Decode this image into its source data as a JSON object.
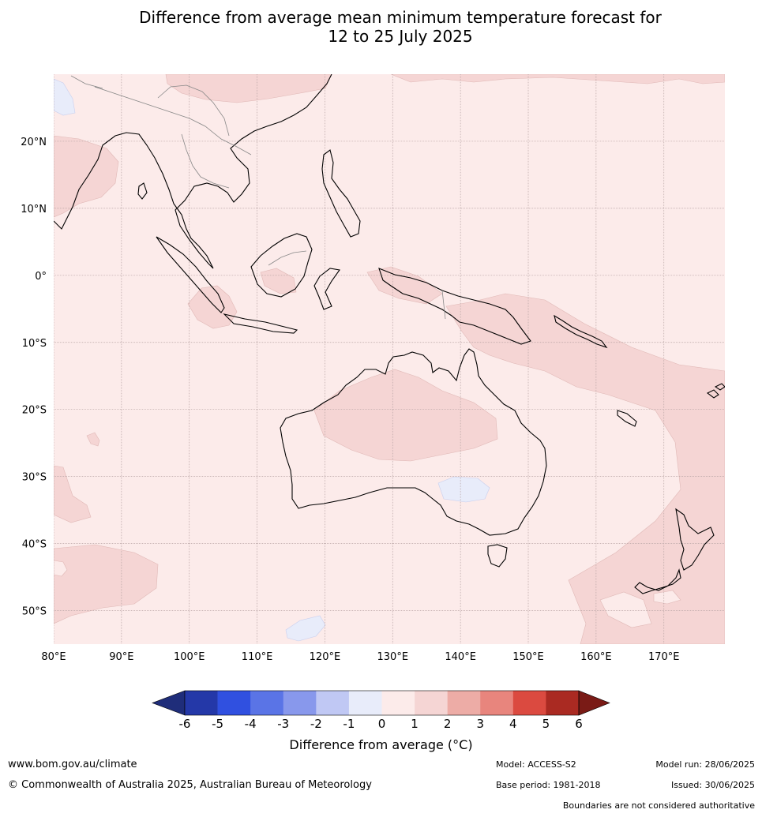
{
  "title": {
    "line1": "Difference from average mean minimum temperature forecast for",
    "line2": "12 to 25 July 2025"
  },
  "map": {
    "region": "Australia and surrounds",
    "lon_range": [
      80,
      179
    ],
    "lat_range": [
      -55,
      30
    ],
    "lat_labels": [
      "20°N",
      "10°N",
      "0°",
      "10°S",
      "20°S",
      "30°S",
      "40°S",
      "50°S"
    ],
    "lat_values": [
      20,
      10,
      0,
      -10,
      -20,
      -30,
      -40,
      -50
    ],
    "lon_labels": [
      "80°E",
      "90°E",
      "100°E",
      "110°E",
      "120°E",
      "130°E",
      "140°E",
      "150°E",
      "160°E",
      "170°E"
    ],
    "lon_values": [
      80,
      90,
      100,
      110,
      120,
      130,
      140,
      150,
      160,
      170
    ],
    "background_anomaly_class": "0 to 1",
    "background_color": "#fcebea"
  },
  "colorbar": {
    "tick_labels": [
      "-6",
      "-5",
      "-4",
      "-3",
      "-2",
      "-1",
      "0",
      "1",
      "2",
      "3",
      "4",
      "5",
      "6"
    ],
    "low_extend_color": "#1f2d7a",
    "high_extend_color": "#7a1b16",
    "colors": [
      "#2438a8",
      "#3050e0",
      "#5a74e6",
      "#8898ec",
      "#c0c8f4",
      "#e8ecfa",
      "#fcebea",
      "#f5d5d4",
      "#edaca6",
      "#e8857d",
      "#db4a40",
      "#aa2a22"
    ],
    "label": "Difference from average (°C)"
  },
  "footer": {
    "website": "www.bom.gov.au/climate",
    "copyright": "© Commonwealth of Australia 2025, Australian Bureau of Meteorology",
    "model": "Model: ACCESS-S2",
    "model_run": "Model run: 28/06/2025",
    "base_period": "Base period: 1981-2018",
    "issued": "Issued: 30/06/2025",
    "disclaimer": "Boundaries are not considered authoritative"
  }
}
